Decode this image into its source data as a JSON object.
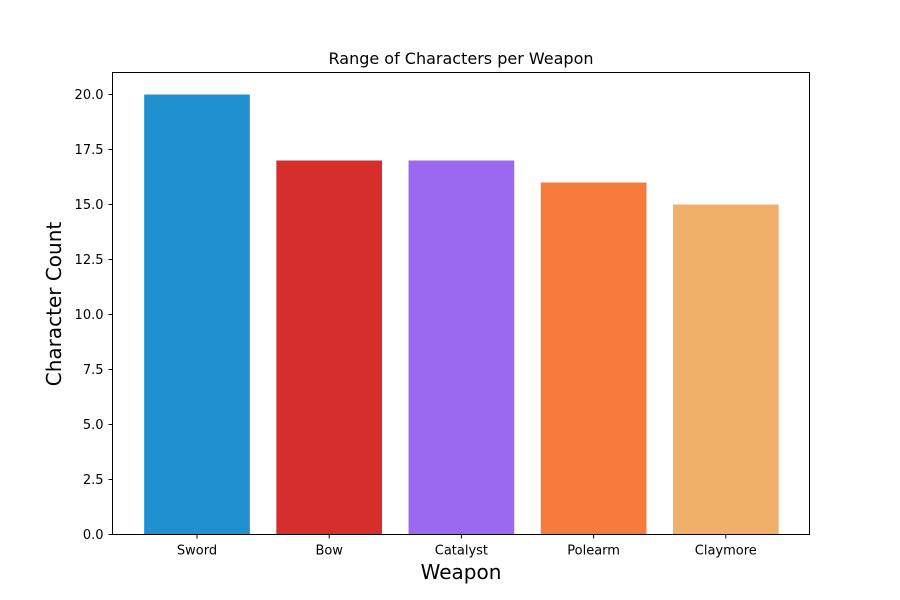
{
  "chart_data": {
    "type": "bar",
    "title": "Range of Characters per Weapon",
    "xlabel": "Weapon",
    "ylabel": "Character Count",
    "categories": [
      "Sword",
      "Bow",
      "Catalyst",
      "Polearm",
      "Claymore"
    ],
    "values": [
      20,
      17,
      17,
      16,
      15
    ],
    "colors": [
      "#1f91d0",
      "#d62d2d",
      "#9b69f0",
      "#f77b3b",
      "#f1b06a"
    ],
    "ylim": [
      0,
      21
    ],
    "yticks": [
      0,
      2.5,
      5,
      7.5,
      10,
      12.5,
      15,
      17.5,
      20
    ],
    "ytick_labels": [
      "0.0",
      "2.5",
      "5.0",
      "7.5",
      "10.0",
      "12.5",
      "15.0",
      "17.5",
      "20.0"
    ],
    "grid": false,
    "legend": "none"
  }
}
